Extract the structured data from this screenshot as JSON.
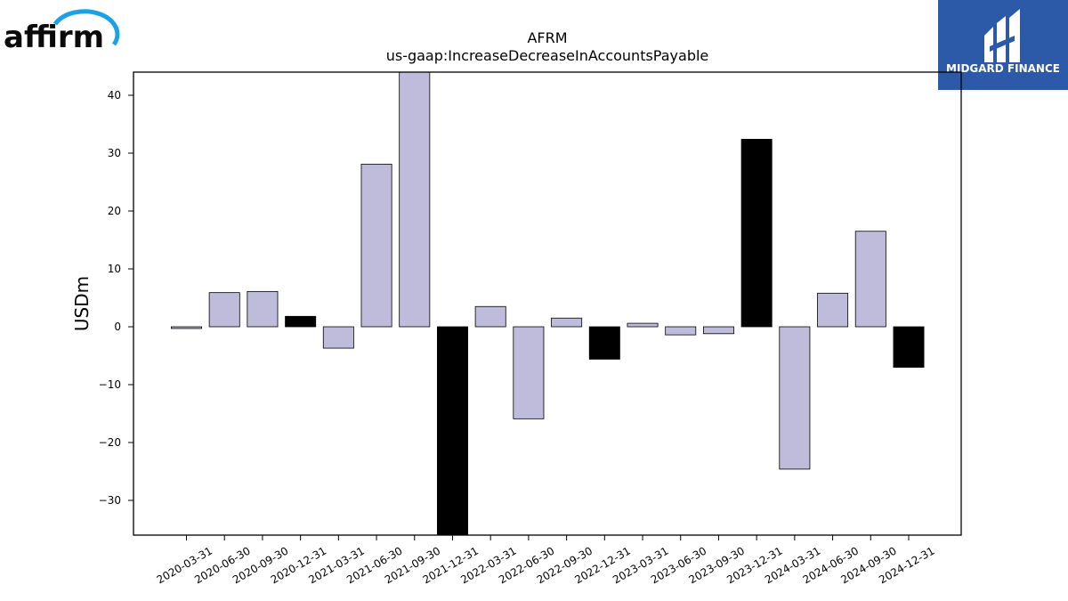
{
  "logos": {
    "left_text": "affirm",
    "right_text": "MIDGARD FINANCE"
  },
  "colors": {
    "positive_bar": "#bfbbdb",
    "q4_bar": "#000000",
    "bar_edge": "#000000",
    "affirm_arc": "#1aa1e8",
    "midgard_bg": "#2c5aa8"
  },
  "chart_data": {
    "type": "bar",
    "title": "AFRM",
    "subtitle": "us-gaap:IncreaseDecreaseInAccountsPayable",
    "xlabel": "",
    "ylabel": "USDm",
    "ylim": [
      -36,
      44
    ],
    "yticks": [
      -30,
      -20,
      -10,
      0,
      10,
      20,
      30,
      40
    ],
    "grid": false,
    "categories": [
      "2020-03-31",
      "2020-06-30",
      "2020-09-30",
      "2020-12-31",
      "2021-03-31",
      "2021-06-30",
      "2021-09-30",
      "2021-12-31",
      "2022-03-31",
      "2022-06-30",
      "2022-09-30",
      "2022-12-31",
      "2023-03-31",
      "2023-06-30",
      "2023-09-30",
      "2023-12-31",
      "2024-03-31",
      "2024-06-30",
      "2024-09-30",
      "2024-12-31"
    ],
    "values": [
      -0.3,
      5.9,
      6.1,
      1.8,
      -3.7,
      28.1,
      44.0,
      -36.0,
      3.5,
      -15.9,
      1.5,
      -5.6,
      0.6,
      -1.4,
      -1.2,
      32.4,
      -24.6,
      5.8,
      16.5,
      -7.0
    ],
    "highlight": [
      false,
      false,
      false,
      true,
      false,
      false,
      false,
      true,
      false,
      false,
      false,
      true,
      false,
      false,
      false,
      true,
      false,
      false,
      false,
      true
    ]
  }
}
